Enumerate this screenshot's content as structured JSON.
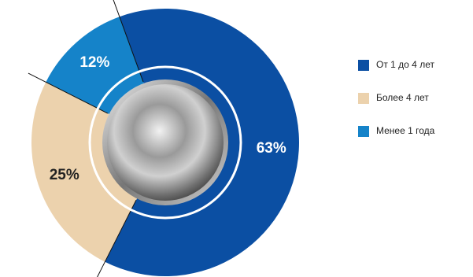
{
  "chart_data": {
    "type": "donut",
    "categories": [
      "От 1 до 4 лет",
      "Более 4 лет",
      "Менее 1 года"
    ],
    "values": [
      63,
      25,
      12
    ],
    "value_labels": [
      "63%",
      "25%",
      "12%"
    ],
    "colors": [
      "#0b4fa3",
      "#ecd2ad",
      "#1583c9"
    ],
    "legend": "right"
  }
}
